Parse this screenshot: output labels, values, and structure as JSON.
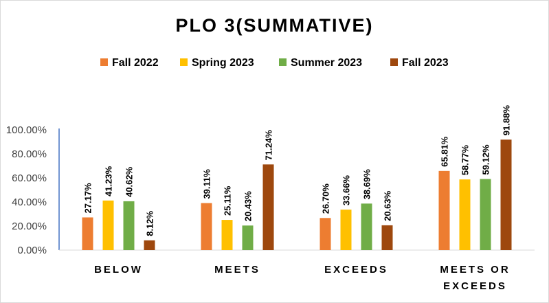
{
  "chart_data": {
    "type": "bar",
    "title": "PLO 3(SUMMATIVE)",
    "categories": [
      [
        "BELOW"
      ],
      [
        "MEETS"
      ],
      [
        "EXCEEDS"
      ],
      [
        "MEETS OR",
        "EXCEEDS"
      ]
    ],
    "series": [
      {
        "name": "Fall 2022",
        "color": "#ED7D31",
        "values": [
          27.17,
          39.11,
          26.7,
          65.81
        ],
        "labels": [
          "27.17%",
          "39.11%",
          "26.70%",
          "65.81%"
        ]
      },
      {
        "name": "Spring 2023",
        "color": "#FFC000",
        "values": [
          41.23,
          25.11,
          33.66,
          58.77
        ],
        "labels": [
          "41.23%",
          "25.11%",
          "33.66%",
          "58.77%"
        ]
      },
      {
        "name": "Summer 2023",
        "color": "#70AD47",
        "values": [
          40.62,
          20.43,
          38.69,
          59.12
        ],
        "labels": [
          "40.62%",
          "20.43%",
          "38.69%",
          "59.12%"
        ]
      },
      {
        "name": "Fall 2023",
        "color": "#9E480E",
        "values": [
          8.12,
          71.24,
          20.63,
          91.88
        ],
        "labels": [
          "8.12%",
          "71.24%",
          "20.63%",
          "91.88%"
        ]
      }
    ],
    "yticks": [
      "0.00%",
      "20.00%",
      "40.00%",
      "60.00%",
      "80.00%",
      "100.00%"
    ],
    "ylim": [
      0,
      100
    ],
    "xlabel": "",
    "ylabel": "",
    "grid": false,
    "legend": "top"
  }
}
